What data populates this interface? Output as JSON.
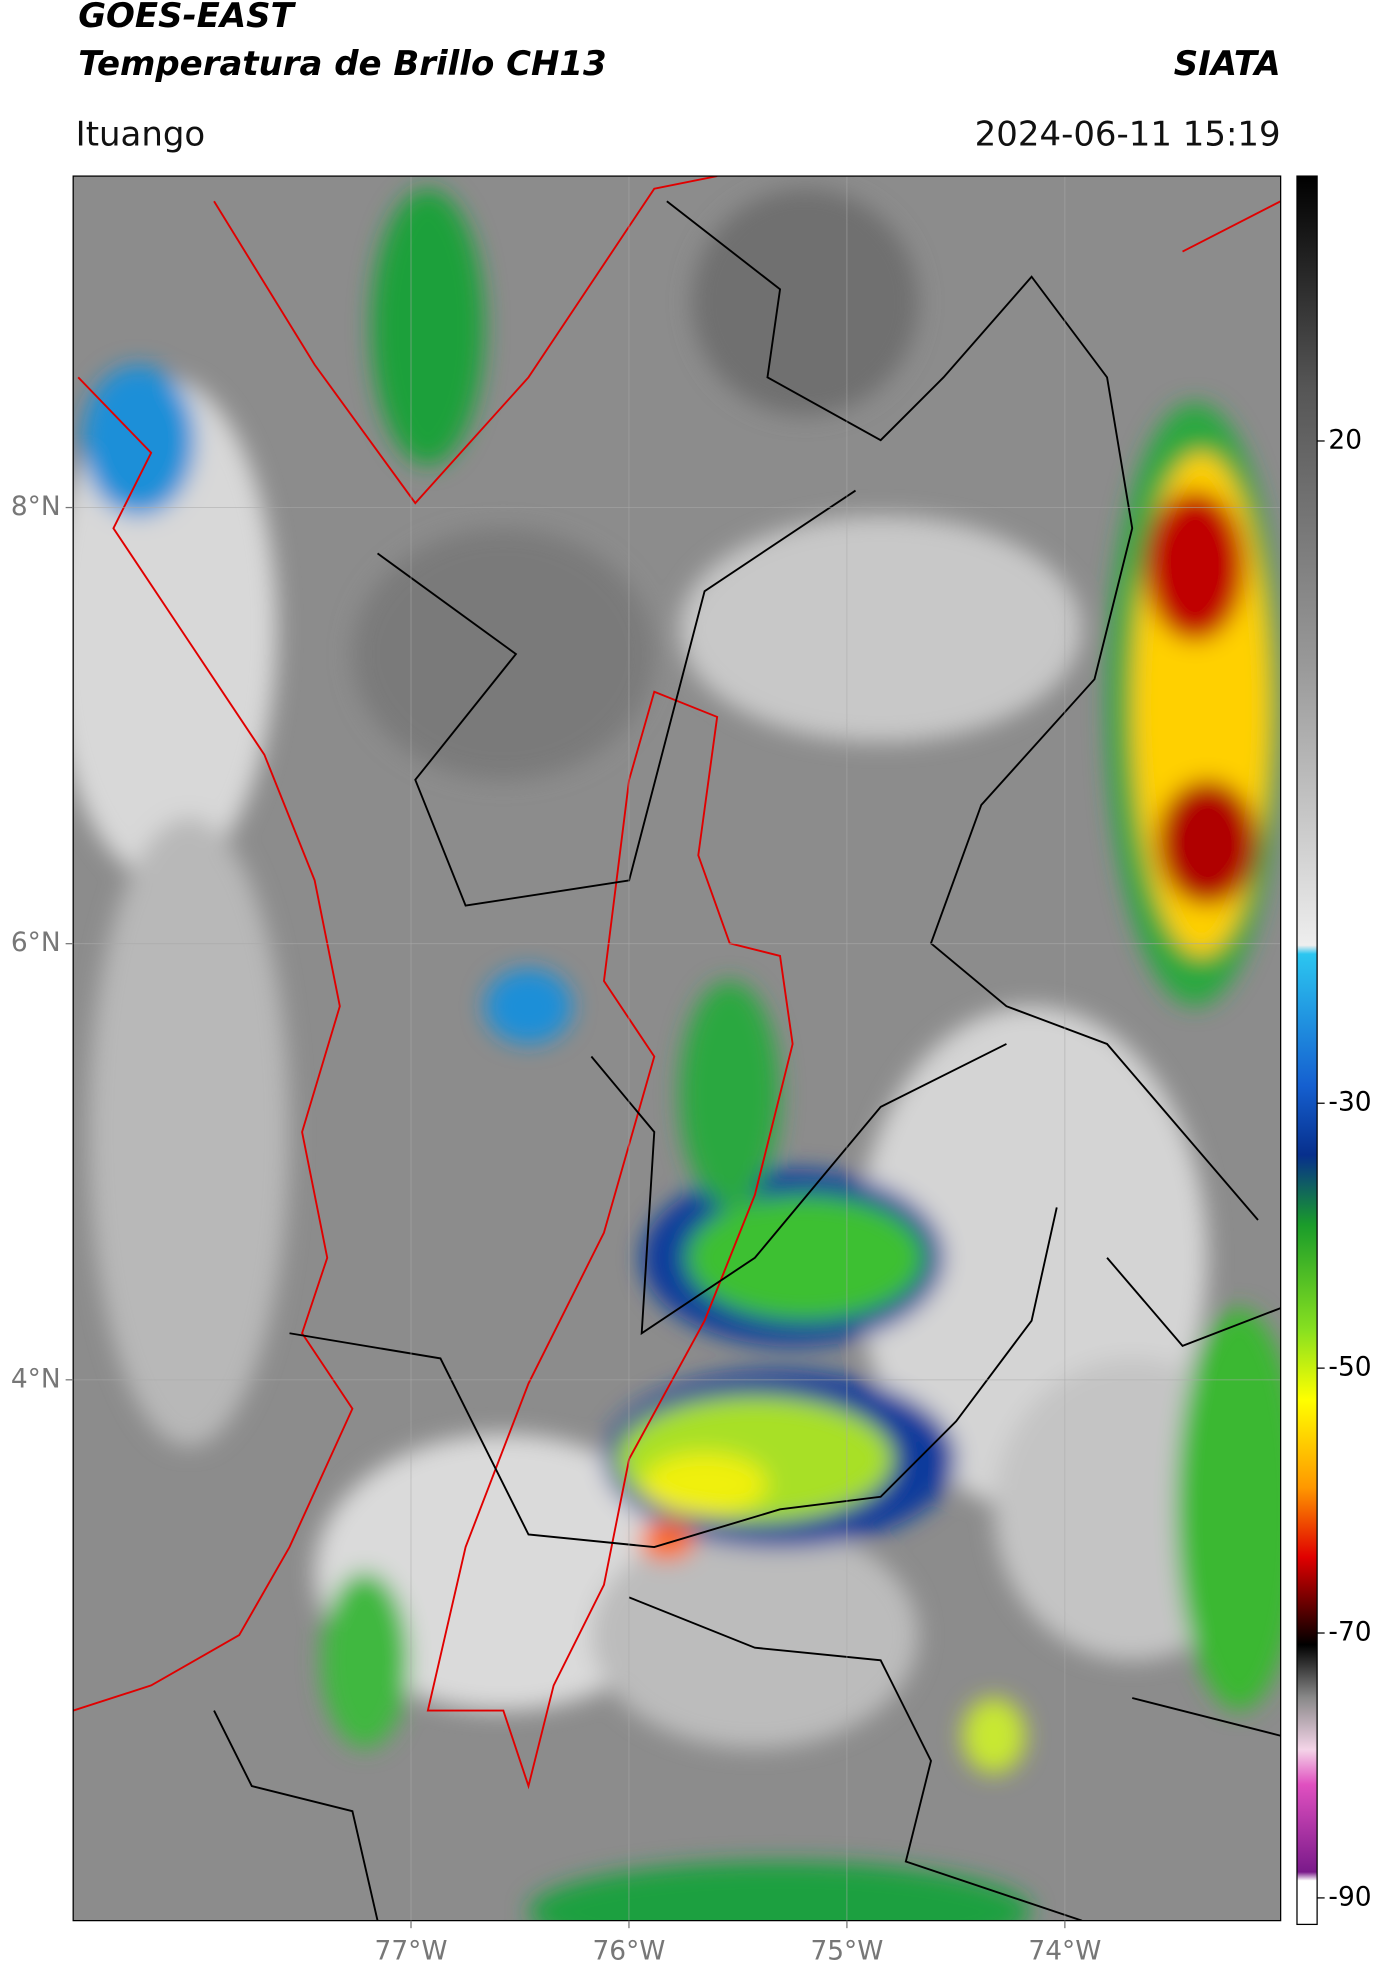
{
  "header": {
    "title": "GOES-EAST",
    "subtitle": "Temperatura de Brillo CH13",
    "source": "SIATA",
    "location": "Ituango",
    "datetime": "2024-06-11 15:19"
  },
  "map": {
    "xlim": [
      -78.55,
      -73.01
    ],
    "ylim": [
      1.52,
      9.52
    ],
    "xticks": [
      {
        "value": -77,
        "label": "77°W"
      },
      {
        "value": -76,
        "label": "76°W"
      },
      {
        "value": -75,
        "label": "75°W"
      },
      {
        "value": -74,
        "label": "74°W"
      }
    ],
    "yticks": [
      {
        "value": 8,
        "label": "8°N"
      },
      {
        "value": 6,
        "label": "6°N"
      },
      {
        "value": 4,
        "label": "4°N"
      }
    ],
    "grid": true
  },
  "colorbar": {
    "lim": [
      -92,
      40
    ],
    "ticks": [
      20,
      -30,
      -50,
      -70,
      -90
    ]
  }
}
